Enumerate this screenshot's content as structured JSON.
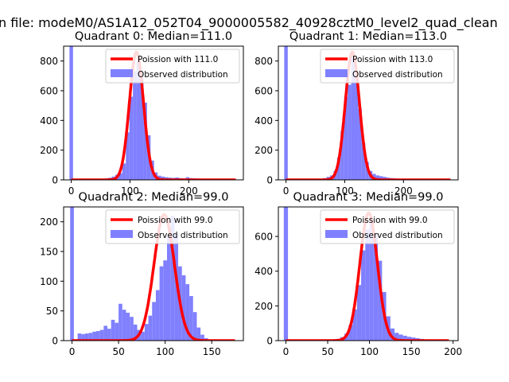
{
  "figure": {
    "suptitle": "n file: modeM0/AS1A12_052T04_9000005582_40928cztM0_level2_quad_clean",
    "colors": {
      "hist": "#8080ff",
      "poisson": "#ff0000",
      "axes": "#000000",
      "background": "#ffffff"
    }
  },
  "chart_data": [
    {
      "type": "histogram",
      "title": "Quadrant 0: Median=111.0",
      "xlabel": "",
      "ylabel": "",
      "xlim": [
        -13,
        293
      ],
      "ylim": [
        0,
        900
      ],
      "xticks": [
        0,
        100,
        200
      ],
      "yticks": [
        0,
        200,
        400,
        600,
        800
      ],
      "grid": false,
      "legend_position": "top-right",
      "bin_width": 6,
      "series": [
        {
          "name": "Poission with 111.0",
          "kind": "line",
          "mean": 111.0,
          "peak": 860,
          "sigma": 12,
          "x_range": [
            0,
            280
          ]
        },
        {
          "name": "Observed distribution",
          "kind": "bar",
          "bins": [
            {
              "x": -3,
              "y": 900
            },
            {
              "x": 33,
              "y": 3
            },
            {
              "x": 39,
              "y": 5
            },
            {
              "x": 45,
              "y": 6
            },
            {
              "x": 51,
              "y": 8
            },
            {
              "x": 57,
              "y": 10
            },
            {
              "x": 63,
              "y": 14
            },
            {
              "x": 69,
              "y": 22
            },
            {
              "x": 75,
              "y": 35
            },
            {
              "x": 81,
              "y": 45
            },
            {
              "x": 87,
              "y": 110
            },
            {
              "x": 93,
              "y": 320
            },
            {
              "x": 99,
              "y": 560
            },
            {
              "x": 105,
              "y": 730
            },
            {
              "x": 111,
              "y": 800
            },
            {
              "x": 117,
              "y": 720
            },
            {
              "x": 123,
              "y": 520
            },
            {
              "x": 129,
              "y": 300
            },
            {
              "x": 135,
              "y": 130
            },
            {
              "x": 141,
              "y": 50
            },
            {
              "x": 147,
              "y": 28
            },
            {
              "x": 153,
              "y": 22
            },
            {
              "x": 159,
              "y": 18
            },
            {
              "x": 165,
              "y": 15
            },
            {
              "x": 171,
              "y": 13
            },
            {
              "x": 177,
              "y": 16
            },
            {
              "x": 183,
              "y": 12
            },
            {
              "x": 189,
              "y": 10
            },
            {
              "x": 195,
              "y": 18
            },
            {
              "x": 201,
              "y": 12
            },
            {
              "x": 207,
              "y": 10
            },
            {
              "x": 213,
              "y": 9
            },
            {
              "x": 219,
              "y": 7
            },
            {
              "x": 225,
              "y": 6
            },
            {
              "x": 231,
              "y": 5
            },
            {
              "x": 237,
              "y": 4
            },
            {
              "x": 243,
              "y": 3
            },
            {
              "x": 249,
              "y": 2
            },
            {
              "x": 255,
              "y": 2
            }
          ]
        }
      ]
    },
    {
      "type": "histogram",
      "title": "Quadrant 1: Median=113.0",
      "xlabel": "",
      "ylabel": "",
      "xlim": [
        -13,
        293
      ],
      "ylim": [
        0,
        900
      ],
      "xticks": [
        0,
        100,
        200
      ],
      "yticks": [
        0,
        200,
        400,
        600,
        800
      ],
      "grid": false,
      "legend_position": "top-right",
      "bin_width": 6,
      "series": [
        {
          "name": "Poission with 113.0",
          "kind": "line",
          "mean": 113.0,
          "peak": 860,
          "sigma": 12,
          "x_range": [
            0,
            280
          ]
        },
        {
          "name": "Observed distribution",
          "kind": "bar",
          "bins": [
            {
              "x": -3,
              "y": 900
            },
            {
              "x": 45,
              "y": 3
            },
            {
              "x": 51,
              "y": 5
            },
            {
              "x": 57,
              "y": 8
            },
            {
              "x": 63,
              "y": 12
            },
            {
              "x": 69,
              "y": 20
            },
            {
              "x": 75,
              "y": 30
            },
            {
              "x": 81,
              "y": 60
            },
            {
              "x": 87,
              "y": 150
            },
            {
              "x": 93,
              "y": 330
            },
            {
              "x": 99,
              "y": 560
            },
            {
              "x": 105,
              "y": 640
            },
            {
              "x": 111,
              "y": 840
            },
            {
              "x": 117,
              "y": 700
            },
            {
              "x": 123,
              "y": 480
            },
            {
              "x": 129,
              "y": 250
            },
            {
              "x": 135,
              "y": 120
            },
            {
              "x": 141,
              "y": 60
            },
            {
              "x": 147,
              "y": 40
            },
            {
              "x": 153,
              "y": 30
            },
            {
              "x": 159,
              "y": 25
            },
            {
              "x": 165,
              "y": 20
            },
            {
              "x": 171,
              "y": 15
            },
            {
              "x": 177,
              "y": 12
            },
            {
              "x": 183,
              "y": 10
            },
            {
              "x": 189,
              "y": 8
            },
            {
              "x": 195,
              "y": 6
            },
            {
              "x": 201,
              "y": 4
            },
            {
              "x": 207,
              "y": 3
            },
            {
              "x": 213,
              "y": 2
            }
          ]
        }
      ]
    },
    {
      "type": "histogram",
      "title": "Quadrant 2: Median=99.0",
      "xlabel": "",
      "ylabel": "",
      "xlim": [
        -9,
        184
      ],
      "ylim": [
        0,
        225
      ],
      "xticks": [
        0,
        50,
        100,
        150
      ],
      "yticks": [
        0,
        50,
        100,
        150,
        200
      ],
      "grid": false,
      "legend_position": "top-right",
      "bin_width": 4,
      "series": [
        {
          "name": "Poission with 99.0",
          "kind": "line",
          "mean": 99.0,
          "peak": 212,
          "sigma": 11,
          "x_range": [
            0,
            175
          ]
        },
        {
          "name": "Observed distribution",
          "kind": "bar",
          "bins": [
            {
              "x": -2,
              "y": 225
            },
            {
              "x": 6,
              "y": 12
            },
            {
              "x": 10,
              "y": 11
            },
            {
              "x": 14,
              "y": 12
            },
            {
              "x": 18,
              "y": 13
            },
            {
              "x": 22,
              "y": 15
            },
            {
              "x": 26,
              "y": 16
            },
            {
              "x": 30,
              "y": 18
            },
            {
              "x": 34,
              "y": 25
            },
            {
              "x": 38,
              "y": 20
            },
            {
              "x": 42,
              "y": 35
            },
            {
              "x": 46,
              "y": 30
            },
            {
              "x": 50,
              "y": 62
            },
            {
              "x": 54,
              "y": 52
            },
            {
              "x": 58,
              "y": 47
            },
            {
              "x": 62,
              "y": 40
            },
            {
              "x": 66,
              "y": 27
            },
            {
              "x": 70,
              "y": 18
            },
            {
              "x": 74,
              "y": 15
            },
            {
              "x": 78,
              "y": 28
            },
            {
              "x": 82,
              "y": 42
            },
            {
              "x": 86,
              "y": 65
            },
            {
              "x": 90,
              "y": 85
            },
            {
              "x": 94,
              "y": 125
            },
            {
              "x": 98,
              "y": 135
            },
            {
              "x": 102,
              "y": 175
            },
            {
              "x": 106,
              "y": 210
            },
            {
              "x": 110,
              "y": 180
            },
            {
              "x": 114,
              "y": 125
            },
            {
              "x": 118,
              "y": 110
            },
            {
              "x": 122,
              "y": 95
            },
            {
              "x": 126,
              "y": 75
            },
            {
              "x": 130,
              "y": 48
            },
            {
              "x": 134,
              "y": 22
            },
            {
              "x": 138,
              "y": 10
            },
            {
              "x": 142,
              "y": 4
            },
            {
              "x": 146,
              "y": 2
            }
          ]
        }
      ]
    },
    {
      "type": "histogram",
      "title": "Quadrant 3: Median=99.0",
      "xlabel": "",
      "ylabel": "",
      "xlim": [
        -9,
        206
      ],
      "ylim": [
        0,
        770
      ],
      "xticks": [
        0,
        50,
        100,
        150,
        200
      ],
      "yticks": [
        0,
        200,
        400,
        600
      ],
      "grid": false,
      "legend_position": "top-right",
      "bin_width": 5,
      "series": [
        {
          "name": "Poission with 99.0",
          "kind": "line",
          "mean": 99.0,
          "peak": 735,
          "sigma": 10.5,
          "x_range": [
            0,
            195
          ]
        },
        {
          "name": "Observed distribution",
          "kind": "bar",
          "bins": [
            {
              "x": -2.5,
              "y": 770
            },
            {
              "x": 45,
              "y": 2
            },
            {
              "x": 50,
              "y": 4
            },
            {
              "x": 55,
              "y": 6
            },
            {
              "x": 60,
              "y": 10
            },
            {
              "x": 65,
              "y": 20
            },
            {
              "x": 70,
              "y": 40
            },
            {
              "x": 75,
              "y": 90
            },
            {
              "x": 80,
              "y": 180
            },
            {
              "x": 85,
              "y": 320
            },
            {
              "x": 90,
              "y": 520
            },
            {
              "x": 95,
              "y": 640
            },
            {
              "x": 100,
              "y": 700
            },
            {
              "x": 105,
              "y": 620
            },
            {
              "x": 110,
              "y": 460
            },
            {
              "x": 115,
              "y": 280
            },
            {
              "x": 120,
              "y": 140
            },
            {
              "x": 125,
              "y": 70
            },
            {
              "x": 130,
              "y": 45
            },
            {
              "x": 135,
              "y": 35
            },
            {
              "x": 140,
              "y": 28
            },
            {
              "x": 145,
              "y": 22
            },
            {
              "x": 150,
              "y": 18
            },
            {
              "x": 155,
              "y": 14
            },
            {
              "x": 160,
              "y": 10
            },
            {
              "x": 165,
              "y": 7
            },
            {
              "x": 170,
              "y": 5
            },
            {
              "x": 175,
              "y": 4
            },
            {
              "x": 180,
              "y": 3
            },
            {
              "x": 185,
              "y": 2
            }
          ]
        }
      ]
    }
  ]
}
